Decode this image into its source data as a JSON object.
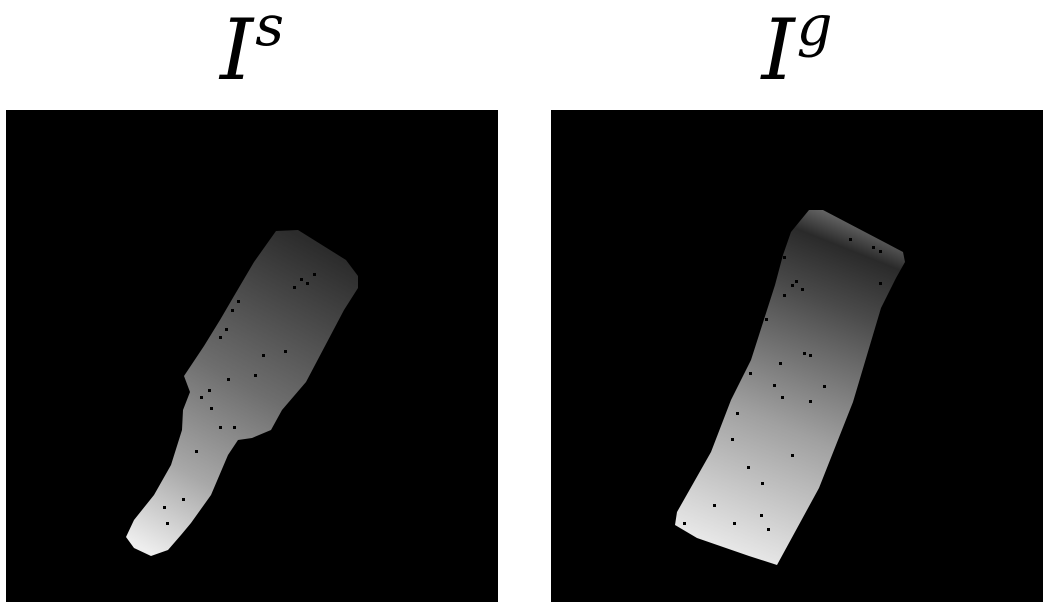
{
  "panels": [
    {
      "id": "source",
      "title_base": "I",
      "title_sup": "s",
      "content": "depth-map-bottle"
    },
    {
      "id": "goal",
      "title_base": "I",
      "title_sup": "g",
      "content": "depth-map-box"
    }
  ],
  "colors": {
    "background": "#000000",
    "near": "#ececec",
    "far": "#2a2a2a"
  }
}
